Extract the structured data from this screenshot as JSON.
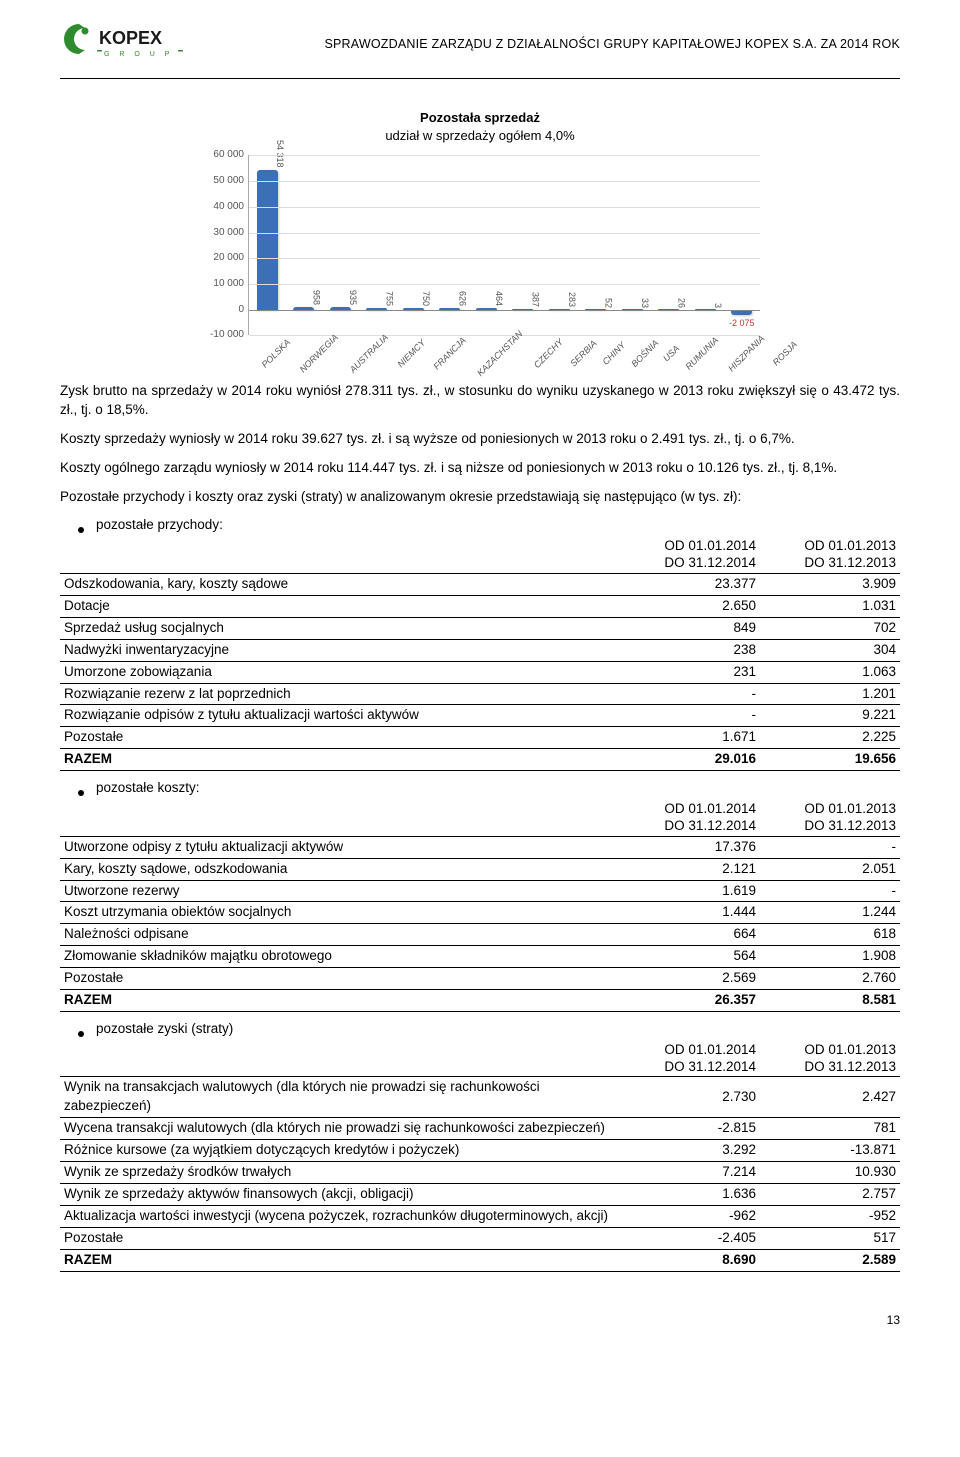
{
  "header": {
    "report_title": "SPRAWOZDANIE ZARZĄDU Z DZIAŁALNOŚCI GRUPY KAPITAŁOWEJ KOPEX S.A. ZA 2014 ROK",
    "logo_text_main": "KOPEX",
    "logo_text_sub": "G R O U P",
    "logo_green": "#2e8b2e",
    "logo_dark": "#1a1a1a"
  },
  "chart": {
    "title": "Pozostała sprzedaż",
    "subtitle": "udział w sprzedaży ogółem 4,0%",
    "type": "bar",
    "categories": [
      "POLSKA",
      "NORWEGIA",
      "AUSTRALIA",
      "NIEMCY",
      "FRANCJA",
      "KAZACHSTAN",
      "CZECHY",
      "SERBIA",
      "CHINY",
      "BOŚNIA",
      "USA",
      "RUMUNIA",
      "HISZPANIA",
      "ROSJA"
    ],
    "values": [
      54318,
      958,
      935,
      755,
      750,
      626,
      464,
      387,
      283,
      52,
      33,
      26,
      3,
      -2075
    ],
    "bar_color": "#3b6fb6",
    "neg_label_color": "#c0392b",
    "background_color": "#ffffff",
    "grid_color": "#dddddd",
    "axis_color": "#aaaaaa",
    "text_color": "#555555",
    "ylim": [
      -10000,
      60000
    ],
    "ytick_step": 10000,
    "yticks": [
      "60 000",
      "50 000",
      "40 000",
      "30 000",
      "20 000",
      "10 000",
      "0",
      "-10 000"
    ],
    "bar_width": 0.58,
    "label_fontsize": 9,
    "tick_fontsize": 10
  },
  "body": {
    "p1": "Zysk brutto na sprzedaży w 2014 roku wyniósł 278.311 tys. zł., w stosunku do wyniku uzyskanego w 2013 roku zwiększył się o 43.472 tys. zł., tj. o 18,5%.",
    "p2": "Koszty sprzedaży wyniosły w 2014 roku 39.627 tys. zł. i są wyższe od poniesionych w 2013 roku o 2.491 tys. zł., tj. o 6,7%.",
    "p3": "Koszty ogólnego zarządu wyniosły w 2014 roku 114.447 tys. zł. i są niższe od poniesionych w 2013 roku o 10.126 tys. zł., tj. 8,1%.",
    "p4": "Pozostałe przychody i koszty oraz zyski (straty) w analizowanym okresie przedstawiają się następująco (w tys. zł):",
    "bullet1": "pozostałe przychody:",
    "bullet2": "pozostałe koszty:",
    "bullet3": "pozostałe zyski (straty)"
  },
  "table_headers": {
    "col2_line1": "OD 01.01.2014",
    "col2_line2": "DO 31.12.2014",
    "col3_line1": "OD 01.01.2013",
    "col3_line2": "DO 31.12.2013"
  },
  "table1": {
    "rows": [
      {
        "label": "Odszkodowania, kary, koszty sądowe",
        "v1": "23.377",
        "v2": "3.909"
      },
      {
        "label": "Dotacje",
        "v1": "2.650",
        "v2": "1.031"
      },
      {
        "label": "Sprzedaż usług socjalnych",
        "v1": "849",
        "v2": "702"
      },
      {
        "label": "Nadwyżki inwentaryzacyjne",
        "v1": "238",
        "v2": "304"
      },
      {
        "label": "Umorzone zobowiązania",
        "v1": "231",
        "v2": "1.063"
      },
      {
        "label": "Rozwiązanie rezerw z lat poprzednich",
        "v1": "-",
        "v2": "1.201"
      },
      {
        "label": "Rozwiązanie odpisów z tytułu aktualizacji wartości aktywów",
        "v1": "-",
        "v2": "9.221"
      },
      {
        "label": "Pozostałe",
        "v1": "1.671",
        "v2": "2.225"
      }
    ],
    "total": {
      "label": "RAZEM",
      "v1": "29.016",
      "v2": "19.656"
    }
  },
  "table2": {
    "rows": [
      {
        "label": "Utworzone odpisy z tytułu aktualizacji aktywów",
        "v1": "17.376",
        "v2": "-"
      },
      {
        "label": "Kary, koszty sądowe, odszkodowania",
        "v1": "2.121",
        "v2": "2.051"
      },
      {
        "label": "Utworzone rezerwy",
        "v1": "1.619",
        "v2": "-"
      },
      {
        "label": "Koszt utrzymania obiektów socjalnych",
        "v1": "1.444",
        "v2": "1.244"
      },
      {
        "label": "Należności odpisane",
        "v1": "664",
        "v2": "618"
      },
      {
        "label": "Złomowanie składników majątku obrotowego",
        "v1": "564",
        "v2": "1.908"
      },
      {
        "label": "Pozostałe",
        "v1": "2.569",
        "v2": "2.760"
      }
    ],
    "total": {
      "label": "RAZEM",
      "v1": "26.357",
      "v2": "8.581"
    }
  },
  "table3": {
    "rows": [
      {
        "label": "Wynik na transakcjach walutowych (dla których nie prowadzi się rachunkowości zabezpieczeń)",
        "v1": "2.730",
        "v2": "2.427"
      },
      {
        "label": "Wycena transakcji walutowych (dla których nie prowadzi się rachunkowości zabezpieczeń)",
        "v1": "-2.815",
        "v2": "781"
      },
      {
        "label": "Różnice kursowe (za wyjątkiem dotyczących kredytów i pożyczek)",
        "v1": "3.292",
        "v2": "-13.871"
      },
      {
        "label": "Wynik ze sprzedaży środków trwałych",
        "v1": "7.214",
        "v2": "10.930"
      },
      {
        "label": "Wynik ze sprzedaży aktywów finansowych (akcji, obligacji)",
        "v1": "1.636",
        "v2": "2.757"
      },
      {
        "label": "Aktualizacja wartości inwestycji (wycena pożyczek, rozrachunków długoterminowych, akcji)",
        "v1": "-962",
        "v2": "-952"
      },
      {
        "label": "Pozostałe",
        "v1": "-2.405",
        "v2": "517"
      }
    ],
    "total": {
      "label": "RAZEM",
      "v1": "8.690",
      "v2": "2.589"
    }
  },
  "page_number": "13"
}
